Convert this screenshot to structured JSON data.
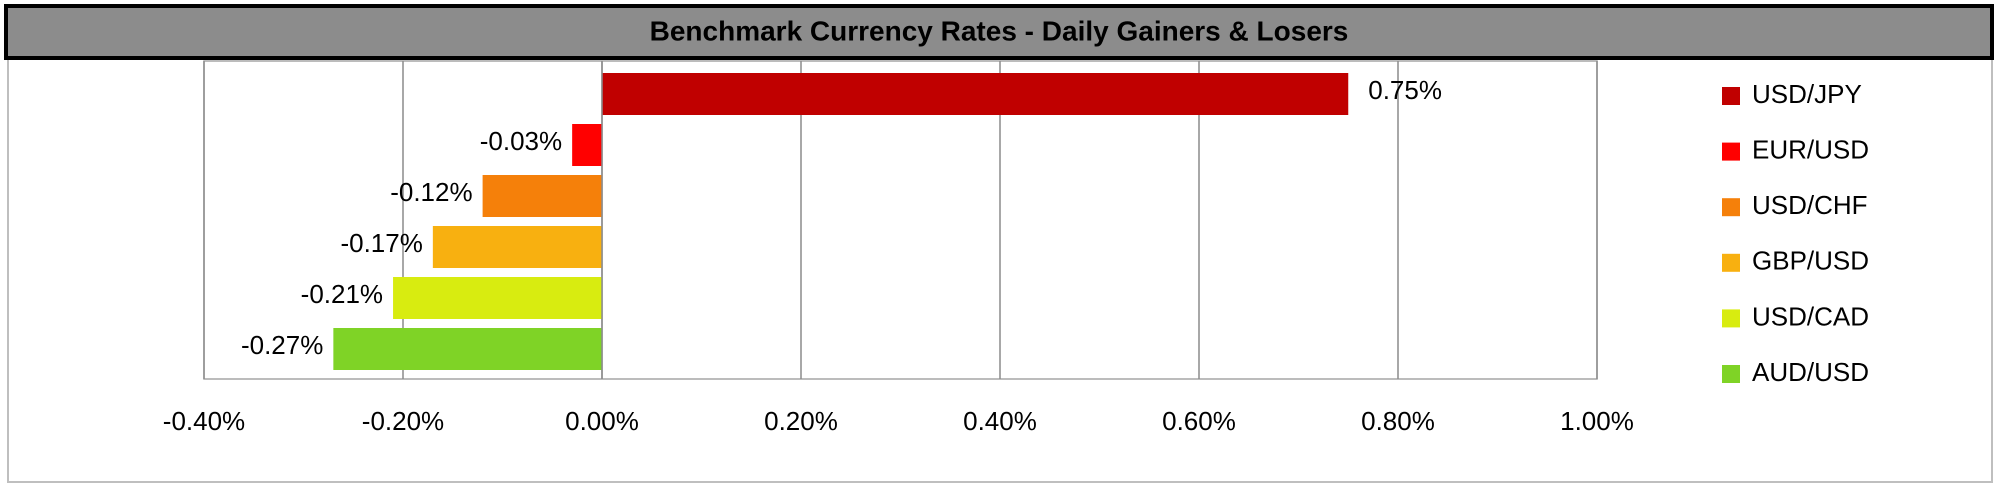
{
  "chart_data": {
    "type": "bar",
    "orientation": "horizontal",
    "title": "Benchmark Currency Rates - Daily Gainers & Losers",
    "categories": [
      "USD/JPY",
      "EUR/USD",
      "USD/CHF",
      "GBP/USD",
      "USD/CAD",
      "AUD/USD"
    ],
    "values": [
      0.75,
      -0.03,
      -0.12,
      -0.17,
      -0.21,
      -0.27
    ],
    "value_labels": [
      "0.75%",
      "-0.03%",
      "-0.12%",
      "-0.17%",
      "-0.21%",
      "-0.27%"
    ],
    "colors": [
      "#c00000",
      "#ff0000",
      "#f5800a",
      "#f8b010",
      "#d8ec10",
      "#7fd326"
    ],
    "xlim": [
      -0.4,
      1.0
    ],
    "xticks": [
      {
        "value": -0.4,
        "label": "-0.40%"
      },
      {
        "value": -0.2,
        "label": "-0.20%"
      },
      {
        "value": 0,
        "label": "0.00%"
      },
      {
        "value": 0.2,
        "label": "0.20%"
      },
      {
        "value": 0.4,
        "label": "0.40%"
      },
      {
        "value": 0.6,
        "label": "0.60%"
      },
      {
        "value": 0.8,
        "label": "0.80%"
      },
      {
        "value": 1.0,
        "label": "1.00%"
      }
    ],
    "grid": true,
    "legend": "right"
  }
}
